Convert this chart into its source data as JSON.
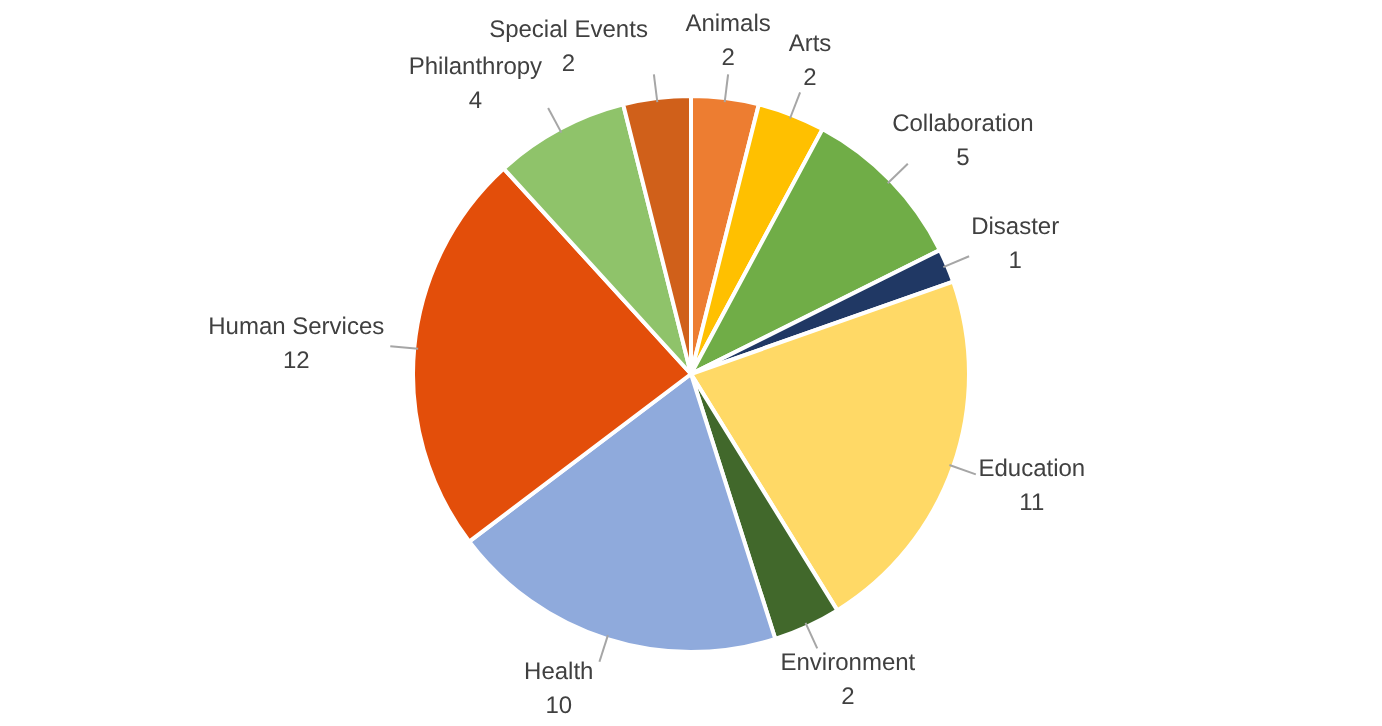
{
  "chart_data": {
    "type": "pie",
    "categories": [
      "Animals",
      "Arts",
      "Collaboration",
      "Disaster",
      "Education",
      "Environment",
      "Health",
      "Human Services",
      "Philanthropy",
      "Special Events"
    ],
    "values": [
      2,
      2,
      5,
      1,
      11,
      2,
      10,
      12,
      4,
      2
    ],
    "colors": [
      "#ed7d31",
      "#ffc000",
      "#70ad47",
      "#203864",
      "#ffd966",
      "#41682b",
      "#8faadc",
      "#e34e0a",
      "#8fc36a",
      "#d0601a"
    ],
    "data_labels": true,
    "legend": false
  }
}
